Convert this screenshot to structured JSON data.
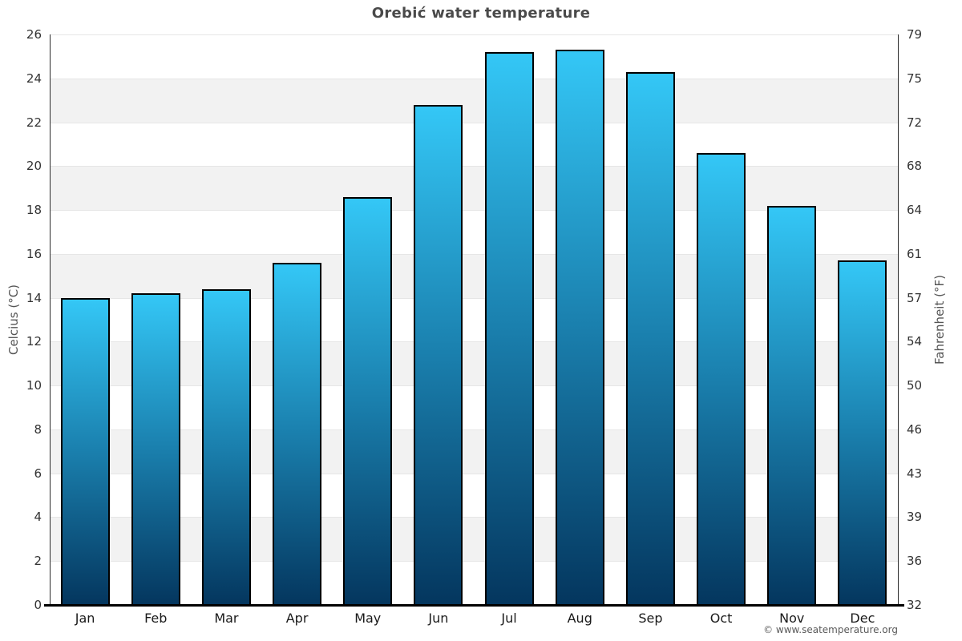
{
  "title": "Orebić water temperature",
  "copyright": "© www.seatemperature.org",
  "axes": {
    "left_title": "Celcius (°C)",
    "right_title": "Fahrenheit (°F)"
  },
  "chart_data": {
    "type": "bar",
    "title": "Orebić water temperature",
    "categories": [
      "Jan",
      "Feb",
      "Mar",
      "Apr",
      "May",
      "Jun",
      "Jul",
      "Aug",
      "Sep",
      "Oct",
      "Nov",
      "Dec"
    ],
    "values": [
      14.0,
      14.2,
      14.4,
      15.6,
      18.6,
      22.8,
      25.2,
      25.3,
      24.3,
      20.6,
      18.2,
      15.7
    ],
    "unit": "°C",
    "xlabel": "",
    "ylabel_left": "Celcius (°C)",
    "ylabel_right": "Fahrenheit (°F)",
    "ylim": [
      0,
      26
    ],
    "ytick_step": 2,
    "yticks_celsius": [
      0,
      2,
      4,
      6,
      8,
      10,
      12,
      14,
      16,
      18,
      20,
      22,
      24,
      26
    ],
    "yticks_fahrenheit": [
      32,
      36,
      39,
      43,
      46,
      50,
      54,
      57,
      61,
      64,
      68,
      72,
      75,
      79
    ],
    "grid": "horizontal-bands-alternating",
    "legend": "none",
    "colors": {
      "bar_gradient_top": "#34C7F6",
      "bar_gradient_mid": "#1A7FAD",
      "bar_gradient_bottom": "#04365E",
      "bar_border": "#000000",
      "band_gray": "#f2f2f2",
      "band_white": "#ffffff",
      "gridline": "#e6e6e6",
      "axis_line": "#000000",
      "title_color": "#4a4a4a",
      "tick_color": "#333333",
      "axis_title_color": "#555555"
    }
  }
}
